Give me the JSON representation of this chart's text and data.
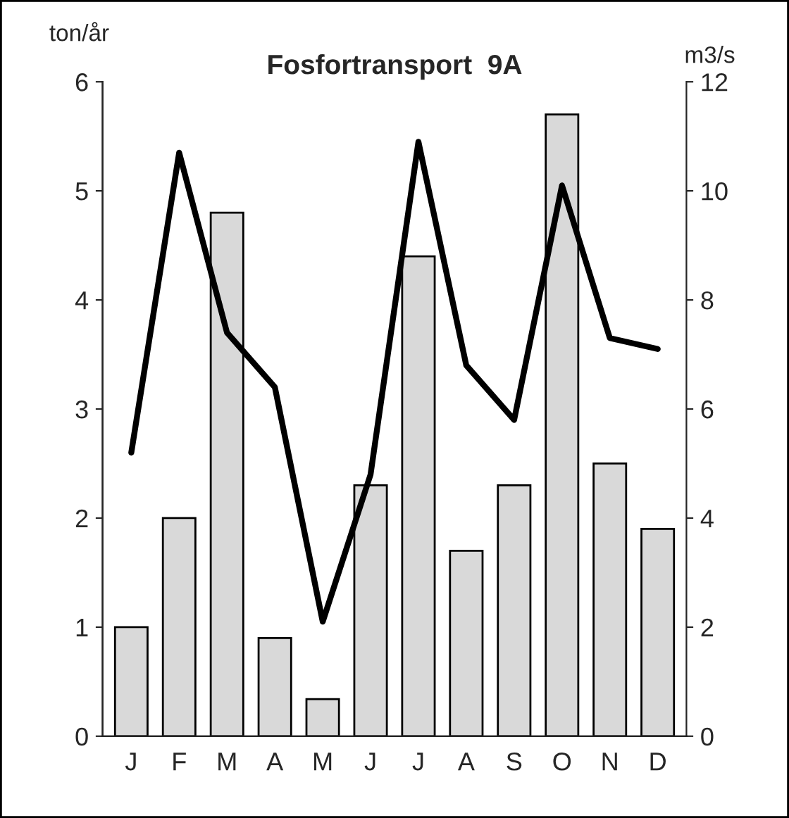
{
  "chart_data": {
    "type": "bar",
    "title": "Fosfortransport  9A",
    "ylabel": "ton/år",
    "y2label": "m3/s",
    "categories": [
      "J",
      "F",
      "M",
      "A",
      "M",
      "J",
      "J",
      "A",
      "S",
      "O",
      "N",
      "D"
    ],
    "series": [
      {
        "color": "#d9d9d9",
        "values": [
          1.0,
          2.0,
          4.8,
          0.9,
          0.34,
          2.3,
          4.4,
          1.7,
          2.3,
          5.7,
          2.5,
          1.9
        ]
      },
      {
        "type": "line",
        "axis": "y2",
        "color": "#000000",
        "values": [
          5.2,
          10.7,
          7.4,
          6.4,
          2.1,
          4.8,
          10.9,
          6.8,
          5.8,
          10.1,
          7.3,
          7.1
        ]
      }
    ],
    "ylim": [
      0,
      6
    ],
    "yticks": [
      0,
      1,
      2,
      3,
      4,
      5,
      6
    ],
    "y2lim": [
      0,
      12
    ],
    "y2ticks": [
      0,
      2,
      4,
      6,
      8,
      10,
      12
    ],
    "grid": false,
    "legend": false,
    "marker": "none",
    "line_style": "solid"
  }
}
